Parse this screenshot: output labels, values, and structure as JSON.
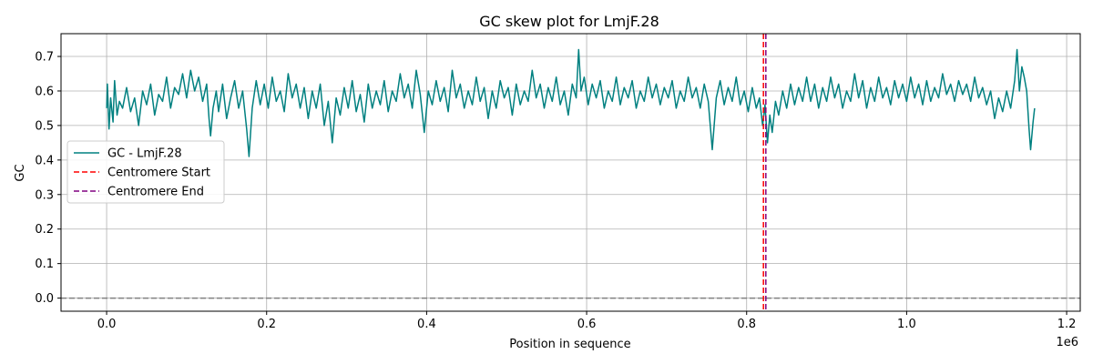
{
  "chart_data": {
    "type": "line",
    "title": "GC skew plot for LmjF.28",
    "xlabel": "Position in sequence",
    "ylabel": "GC",
    "x_offset_label": "1e6",
    "xlim": [
      -57000,
      1217000
    ],
    "ylim": [
      -0.038,
      0.766
    ],
    "x_ticks": [
      0,
      200000,
      400000,
      600000,
      800000,
      1000000,
      1200000
    ],
    "x_tick_labels": [
      "0.0",
      "0.2",
      "0.4",
      "0.6",
      "0.8",
      "1.0",
      "1.2"
    ],
    "y_ticks": [
      0.0,
      0.1,
      0.2,
      0.3,
      0.4,
      0.5,
      0.6,
      0.7
    ],
    "y_tick_labels": [
      "0.0",
      "0.1",
      "0.2",
      "0.3",
      "0.4",
      "0.5",
      "0.6",
      "0.7"
    ],
    "grid": true,
    "legend_position": "center-left",
    "series": [
      {
        "name": "GC - LmjF.28",
        "color": "#008080",
        "points": [
          [
            0,
            0.55
          ],
          [
            1000,
            0.62
          ],
          [
            3000,
            0.49
          ],
          [
            5000,
            0.58
          ],
          [
            8000,
            0.51
          ],
          [
            10000,
            0.63
          ],
          [
            13000,
            0.53
          ],
          [
            16000,
            0.57
          ],
          [
            20000,
            0.55
          ],
          [
            25000,
            0.61
          ],
          [
            30000,
            0.54
          ],
          [
            35000,
            0.58
          ],
          [
            40000,
            0.5
          ],
          [
            45000,
            0.6
          ],
          [
            50000,
            0.56
          ],
          [
            55000,
            0.62
          ],
          [
            60000,
            0.53
          ],
          [
            65000,
            0.59
          ],
          [
            70000,
            0.57
          ],
          [
            75000,
            0.64
          ],
          [
            80000,
            0.55
          ],
          [
            85000,
            0.61
          ],
          [
            90000,
            0.59
          ],
          [
            95000,
            0.65
          ],
          [
            100000,
            0.58
          ],
          [
            105000,
            0.66
          ],
          [
            110000,
            0.6
          ],
          [
            115000,
            0.64
          ],
          [
            120000,
            0.57
          ],
          [
            125000,
            0.62
          ],
          [
            128000,
            0.52
          ],
          [
            130000,
            0.47
          ],
          [
            133000,
            0.55
          ],
          [
            137000,
            0.6
          ],
          [
            140000,
            0.54
          ],
          [
            145000,
            0.62
          ],
          [
            150000,
            0.52
          ],
          [
            155000,
            0.58
          ],
          [
            160000,
            0.63
          ],
          [
            165000,
            0.55
          ],
          [
            170000,
            0.6
          ],
          [
            175000,
            0.49
          ],
          [
            178000,
            0.41
          ],
          [
            182000,
            0.55
          ],
          [
            187000,
            0.63
          ],
          [
            192000,
            0.56
          ],
          [
            197000,
            0.62
          ],
          [
            202000,
            0.55
          ],
          [
            207000,
            0.64
          ],
          [
            212000,
            0.57
          ],
          [
            217000,
            0.6
          ],
          [
            222000,
            0.54
          ],
          [
            227000,
            0.65
          ],
          [
            232000,
            0.58
          ],
          [
            237000,
            0.62
          ],
          [
            242000,
            0.55
          ],
          [
            247000,
            0.61
          ],
          [
            252000,
            0.52
          ],
          [
            257000,
            0.6
          ],
          [
            262000,
            0.55
          ],
          [
            267000,
            0.62
          ],
          [
            272000,
            0.5
          ],
          [
            277000,
            0.57
          ],
          [
            282000,
            0.45
          ],
          [
            287000,
            0.58
          ],
          [
            292000,
            0.53
          ],
          [
            297000,
            0.61
          ],
          [
            302000,
            0.55
          ],
          [
            307000,
            0.63
          ],
          [
            312000,
            0.54
          ],
          [
            317000,
            0.59
          ],
          [
            322000,
            0.51
          ],
          [
            327000,
            0.62
          ],
          [
            332000,
            0.55
          ],
          [
            337000,
            0.6
          ],
          [
            342000,
            0.56
          ],
          [
            347000,
            0.63
          ],
          [
            352000,
            0.54
          ],
          [
            357000,
            0.6
          ],
          [
            362000,
            0.57
          ],
          [
            367000,
            0.65
          ],
          [
            372000,
            0.58
          ],
          [
            377000,
            0.62
          ],
          [
            382000,
            0.55
          ],
          [
            387000,
            0.66
          ],
          [
            392000,
            0.59
          ],
          [
            397000,
            0.48
          ],
          [
            402000,
            0.6
          ],
          [
            407000,
            0.56
          ],
          [
            412000,
            0.63
          ],
          [
            417000,
            0.57
          ],
          [
            422000,
            0.61
          ],
          [
            427000,
            0.54
          ],
          [
            432000,
            0.66
          ],
          [
            437000,
            0.58
          ],
          [
            442000,
            0.62
          ],
          [
            447000,
            0.55
          ],
          [
            452000,
            0.6
          ],
          [
            457000,
            0.56
          ],
          [
            462000,
            0.64
          ],
          [
            467000,
            0.57
          ],
          [
            472000,
            0.61
          ],
          [
            477000,
            0.52
          ],
          [
            482000,
            0.6
          ],
          [
            487000,
            0.55
          ],
          [
            492000,
            0.63
          ],
          [
            497000,
            0.58
          ],
          [
            502000,
            0.61
          ],
          [
            507000,
            0.53
          ],
          [
            512000,
            0.62
          ],
          [
            517000,
            0.56
          ],
          [
            522000,
            0.6
          ],
          [
            527000,
            0.57
          ],
          [
            532000,
            0.66
          ],
          [
            537000,
            0.58
          ],
          [
            542000,
            0.62
          ],
          [
            547000,
            0.55
          ],
          [
            552000,
            0.61
          ],
          [
            557000,
            0.57
          ],
          [
            562000,
            0.64
          ],
          [
            567000,
            0.56
          ],
          [
            572000,
            0.6
          ],
          [
            577000,
            0.53
          ],
          [
            582000,
            0.62
          ],
          [
            587000,
            0.58
          ],
          [
            590000,
            0.72
          ],
          [
            593000,
            0.6
          ],
          [
            597000,
            0.64
          ],
          [
            602000,
            0.56
          ],
          [
            607000,
            0.62
          ],
          [
            612000,
            0.58
          ],
          [
            617000,
            0.63
          ],
          [
            622000,
            0.55
          ],
          [
            627000,
            0.6
          ],
          [
            632000,
            0.57
          ],
          [
            637000,
            0.64
          ],
          [
            642000,
            0.56
          ],
          [
            647000,
            0.61
          ],
          [
            652000,
            0.58
          ],
          [
            657000,
            0.63
          ],
          [
            662000,
            0.55
          ],
          [
            667000,
            0.6
          ],
          [
            672000,
            0.57
          ],
          [
            677000,
            0.64
          ],
          [
            682000,
            0.58
          ],
          [
            687000,
            0.62
          ],
          [
            692000,
            0.56
          ],
          [
            697000,
            0.61
          ],
          [
            702000,
            0.58
          ],
          [
            707000,
            0.63
          ],
          [
            712000,
            0.55
          ],
          [
            717000,
            0.6
          ],
          [
            722000,
            0.57
          ],
          [
            727000,
            0.64
          ],
          [
            732000,
            0.58
          ],
          [
            737000,
            0.61
          ],
          [
            742000,
            0.55
          ],
          [
            747000,
            0.62
          ],
          [
            752000,
            0.57
          ],
          [
            757000,
            0.43
          ],
          [
            762000,
            0.58
          ],
          [
            767000,
            0.63
          ],
          [
            772000,
            0.56
          ],
          [
            777000,
            0.61
          ],
          [
            782000,
            0.57
          ],
          [
            787000,
            0.64
          ],
          [
            792000,
            0.56
          ],
          [
            797000,
            0.6
          ],
          [
            802000,
            0.54
          ],
          [
            807000,
            0.61
          ],
          [
            812000,
            0.55
          ],
          [
            816000,
            0.58
          ],
          [
            820000,
            0.5
          ],
          [
            823000,
            0.56
          ],
          [
            826000,
            0.45
          ],
          [
            829000,
            0.53
          ],
          [
            832000,
            0.48
          ],
          [
            836000,
            0.57
          ],
          [
            840000,
            0.53
          ],
          [
            845000,
            0.6
          ],
          [
            850000,
            0.55
          ],
          [
            855000,
            0.62
          ],
          [
            860000,
            0.56
          ],
          [
            865000,
            0.61
          ],
          [
            870000,
            0.57
          ],
          [
            875000,
            0.64
          ],
          [
            880000,
            0.57
          ],
          [
            885000,
            0.62
          ],
          [
            890000,
            0.55
          ],
          [
            895000,
            0.61
          ],
          [
            900000,
            0.57
          ],
          [
            905000,
            0.64
          ],
          [
            910000,
            0.58
          ],
          [
            915000,
            0.62
          ],
          [
            920000,
            0.55
          ],
          [
            925000,
            0.6
          ],
          [
            930000,
            0.57
          ],
          [
            935000,
            0.65
          ],
          [
            940000,
            0.58
          ],
          [
            945000,
            0.63
          ],
          [
            950000,
            0.55
          ],
          [
            955000,
            0.61
          ],
          [
            960000,
            0.57
          ],
          [
            965000,
            0.64
          ],
          [
            970000,
            0.58
          ],
          [
            975000,
            0.61
          ],
          [
            980000,
            0.56
          ],
          [
            985000,
            0.63
          ],
          [
            990000,
            0.58
          ],
          [
            995000,
            0.62
          ],
          [
            1000000,
            0.57
          ],
          [
            1005000,
            0.64
          ],
          [
            1010000,
            0.58
          ],
          [
            1015000,
            0.62
          ],
          [
            1020000,
            0.56
          ],
          [
            1025000,
            0.63
          ],
          [
            1030000,
            0.57
          ],
          [
            1035000,
            0.61
          ],
          [
            1040000,
            0.58
          ],
          [
            1045000,
            0.65
          ],
          [
            1050000,
            0.59
          ],
          [
            1055000,
            0.62
          ],
          [
            1060000,
            0.57
          ],
          [
            1065000,
            0.63
          ],
          [
            1070000,
            0.59
          ],
          [
            1075000,
            0.62
          ],
          [
            1080000,
            0.57
          ],
          [
            1085000,
            0.64
          ],
          [
            1090000,
            0.58
          ],
          [
            1095000,
            0.61
          ],
          [
            1100000,
            0.56
          ],
          [
            1105000,
            0.6
          ],
          [
            1110000,
            0.52
          ],
          [
            1115000,
            0.58
          ],
          [
            1120000,
            0.54
          ],
          [
            1125000,
            0.6
          ],
          [
            1130000,
            0.55
          ],
          [
            1135000,
            0.63
          ],
          [
            1138000,
            0.72
          ],
          [
            1141000,
            0.6
          ],
          [
            1144000,
            0.67
          ],
          [
            1147000,
            0.64
          ],
          [
            1150000,
            0.6
          ],
          [
            1153000,
            0.49
          ],
          [
            1155000,
            0.43
          ],
          [
            1158000,
            0.51
          ],
          [
            1160000,
            0.55
          ]
        ]
      }
    ],
    "vlines": [
      {
        "name": "Centromere Start",
        "x": 821000,
        "color": "#ff0000",
        "style": "dashed"
      },
      {
        "name": "Centromere End",
        "x": 824000,
        "color": "#800080",
        "style": "dashed"
      }
    ],
    "hlines": [
      {
        "y": 0.0,
        "color": "#808080",
        "style": "dashed"
      }
    ]
  }
}
